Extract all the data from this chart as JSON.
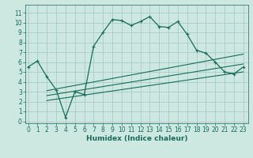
{
  "title": "",
  "xlabel": "Humidex (Indice chaleur)",
  "ylabel": "",
  "bg_color": "#cce8e0",
  "line_color": "#1a6b5a",
  "grid_color": "#aaccc4",
  "x_ticks": [
    0,
    1,
    2,
    3,
    4,
    5,
    6,
    7,
    8,
    9,
    10,
    11,
    12,
    13,
    14,
    15,
    16,
    17,
    18,
    19,
    20,
    21,
    22,
    23
  ],
  "y_ticks": [
    0,
    1,
    2,
    3,
    4,
    5,
    6,
    7,
    8,
    9,
    10,
    11
  ],
  "xlim": [
    -0.3,
    23.5
  ],
  "ylim": [
    -0.2,
    11.8
  ],
  "main_curve_x": [
    0,
    1,
    2,
    3,
    4,
    5,
    6,
    7,
    8,
    9,
    10,
    11,
    12,
    13,
    14,
    15,
    16,
    17,
    18,
    19,
    20,
    21,
    22,
    23
  ],
  "main_curve_y": [
    5.5,
    6.1,
    4.5,
    3.2,
    0.4,
    3.0,
    2.7,
    7.6,
    9.0,
    10.3,
    10.2,
    9.7,
    10.1,
    10.6,
    9.6,
    9.5,
    10.1,
    8.8,
    7.2,
    6.9,
    6.0,
    5.0,
    4.8,
    5.5
  ],
  "line1_x": [
    2,
    23
  ],
  "line1_y": [
    2.1,
    5.0
  ],
  "line2_x": [
    2,
    23
  ],
  "line2_y": [
    2.6,
    5.8
  ],
  "line3_x": [
    2,
    23
  ],
  "line3_y": [
    3.1,
    6.8
  ],
  "tick_fontsize": 5.5,
  "xlabel_fontsize": 6.5,
  "lw_main": 0.9,
  "lw_lines": 0.8,
  "marker_size": 3.5
}
